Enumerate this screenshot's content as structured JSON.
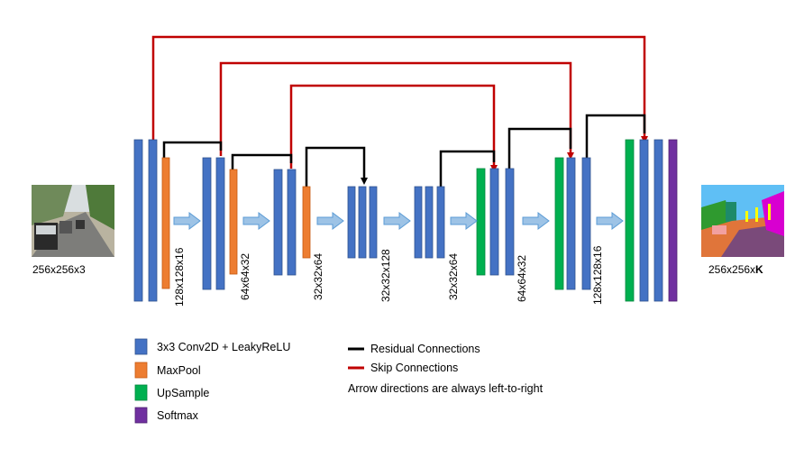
{
  "colors": {
    "conv": "#4472c4",
    "conv_border": "#2f528f",
    "maxpool": "#ed7d31",
    "upsample": "#00b050",
    "softmax": "#7030a0",
    "residual": "#000000",
    "skip": "#c00000",
    "arrow_fill": "#9dc3e6",
    "arrow_stroke": "#5b9bd5"
  },
  "input": {
    "label": "256x256x3",
    "picture": "street-scene-photo"
  },
  "output": {
    "label_prefix": "256x256x",
    "label_bold": "K",
    "picture": "segmentation-map"
  },
  "dimension_labels": [
    "128x128x16",
    "64x64x32",
    "32x32x64",
    "32x32x128",
    "32x32x64",
    "64x64x32",
    "128x128x16"
  ],
  "legend": {
    "conv": "3x3 Conv2D + LeakyReLU",
    "maxpool": "MaxPool",
    "upsample": "UpSample",
    "softmax": "Softmax",
    "residual": "Residual Connections",
    "skip": "Skip Connections",
    "note": "Arrow directions are always left-to-right"
  }
}
